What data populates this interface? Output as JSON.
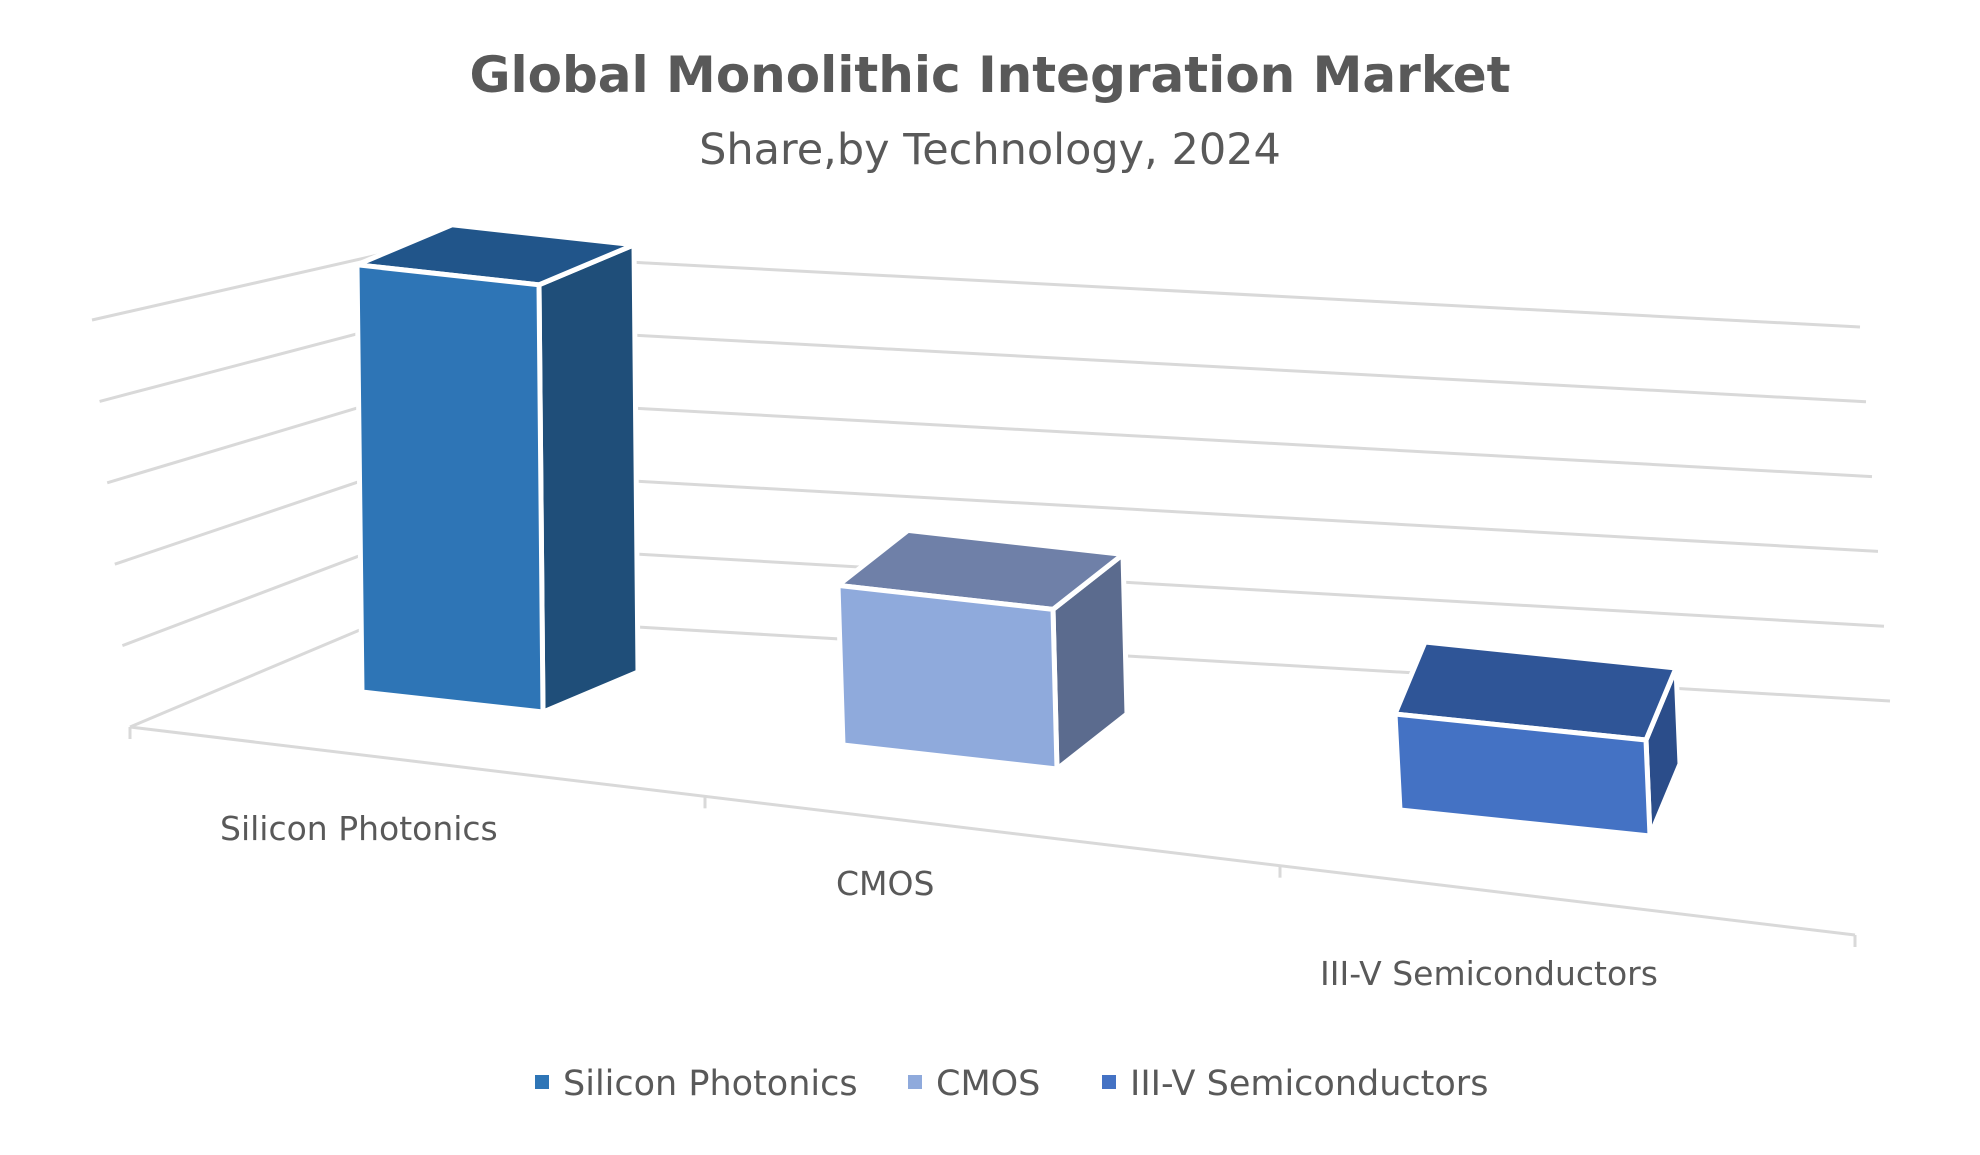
{
  "chart_data": {
    "type": "bar",
    "title": "Global Monolithic Integration Market",
    "subtitle": "Share,by Technology, 2024",
    "categories": [
      "Silicon Photonics",
      "CMOS",
      "III-V Semiconductors"
    ],
    "series": [
      {
        "name": "Silicon Photonics",
        "values": [
          48,
          null,
          null
        ]
      },
      {
        "name": "CMOS",
        "values": [
          null,
          19,
          null
        ]
      },
      {
        "name": "III-V Semiconductors",
        "values": [
          null,
          null,
          12
        ]
      }
    ],
    "values": [
      48,
      19,
      12
    ],
    "ylim": [
      0,
      50
    ],
    "grid": true,
    "legend_position": "bottom",
    "style": "3d-column",
    "colors": {
      "Silicon Photonics": {
        "front": "#2e75b6",
        "top": "#21558a",
        "side": "#1f4e79"
      },
      "CMOS": {
        "front": "#8faadc",
        "top": "#6f80a8",
        "side": "#5b6b8e"
      },
      "III-V Semiconductors": {
        "front": "#4472c4",
        "top": "#2f5597",
        "side": "#2b4d8a"
      }
    }
  }
}
